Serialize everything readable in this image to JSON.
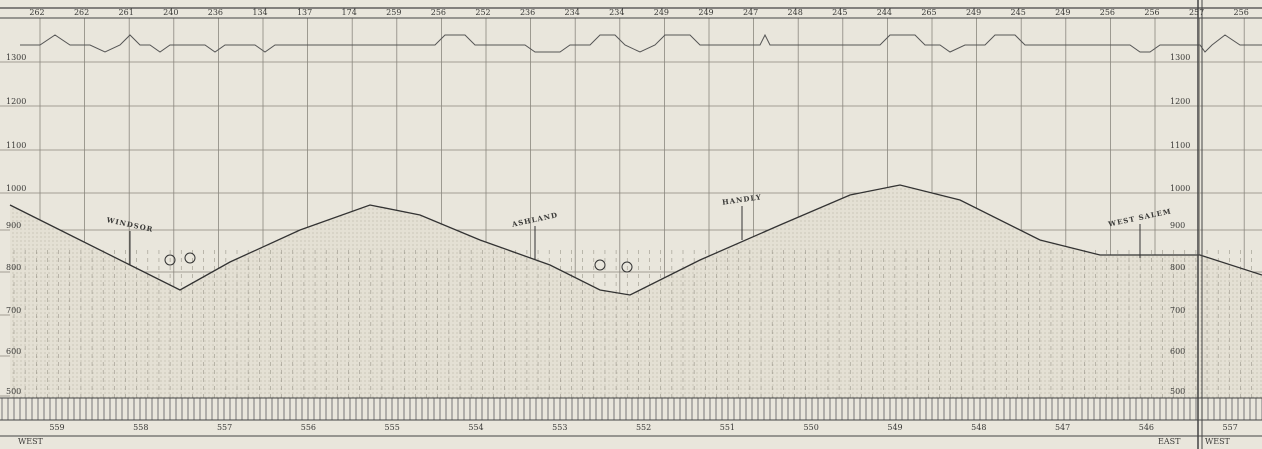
{
  "header": {
    "numbers": [
      "262",
      "262",
      "261",
      "240",
      "236",
      "134",
      "137",
      "174",
      "259",
      "256",
      "252",
      "236",
      "234",
      "234",
      "249",
      "249",
      "247",
      "248",
      "245",
      "244",
      "265",
      "249",
      "245",
      "249",
      "256",
      "256",
      "257",
      "256"
    ]
  },
  "elevations": [
    "1300",
    "1200",
    "1100",
    "1000",
    "900",
    "800",
    "700",
    "600",
    "500"
  ],
  "stations": [
    "WINDSOR",
    "ASHLAND",
    "HANDLY",
    "WEST SALEM"
  ],
  "mileposts": [
    "559",
    "558",
    "557",
    "556",
    "555",
    "554",
    "553",
    "552",
    "551",
    "550",
    "549",
    "548",
    "547",
    "546",
    "557"
  ],
  "footer": {
    "left": "WEST",
    "east": "EAST",
    "west": "WEST"
  }
}
